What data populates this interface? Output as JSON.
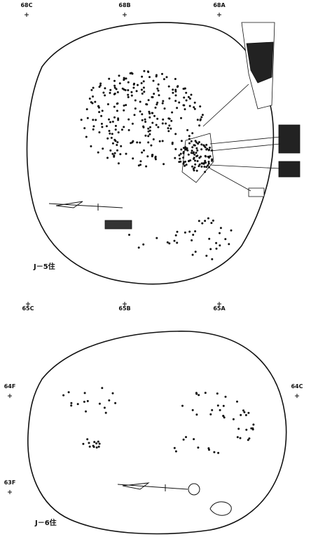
{
  "plans": [
    {
      "label": "J－5住",
      "grid_points": [
        "68C",
        "68B",
        "68A"
      ]
    },
    {
      "label": "J－6住",
      "grid_points": [
        "65C",
        "65B",
        "65A",
        "64F",
        "64C",
        "63F"
      ]
    }
  ]
}
